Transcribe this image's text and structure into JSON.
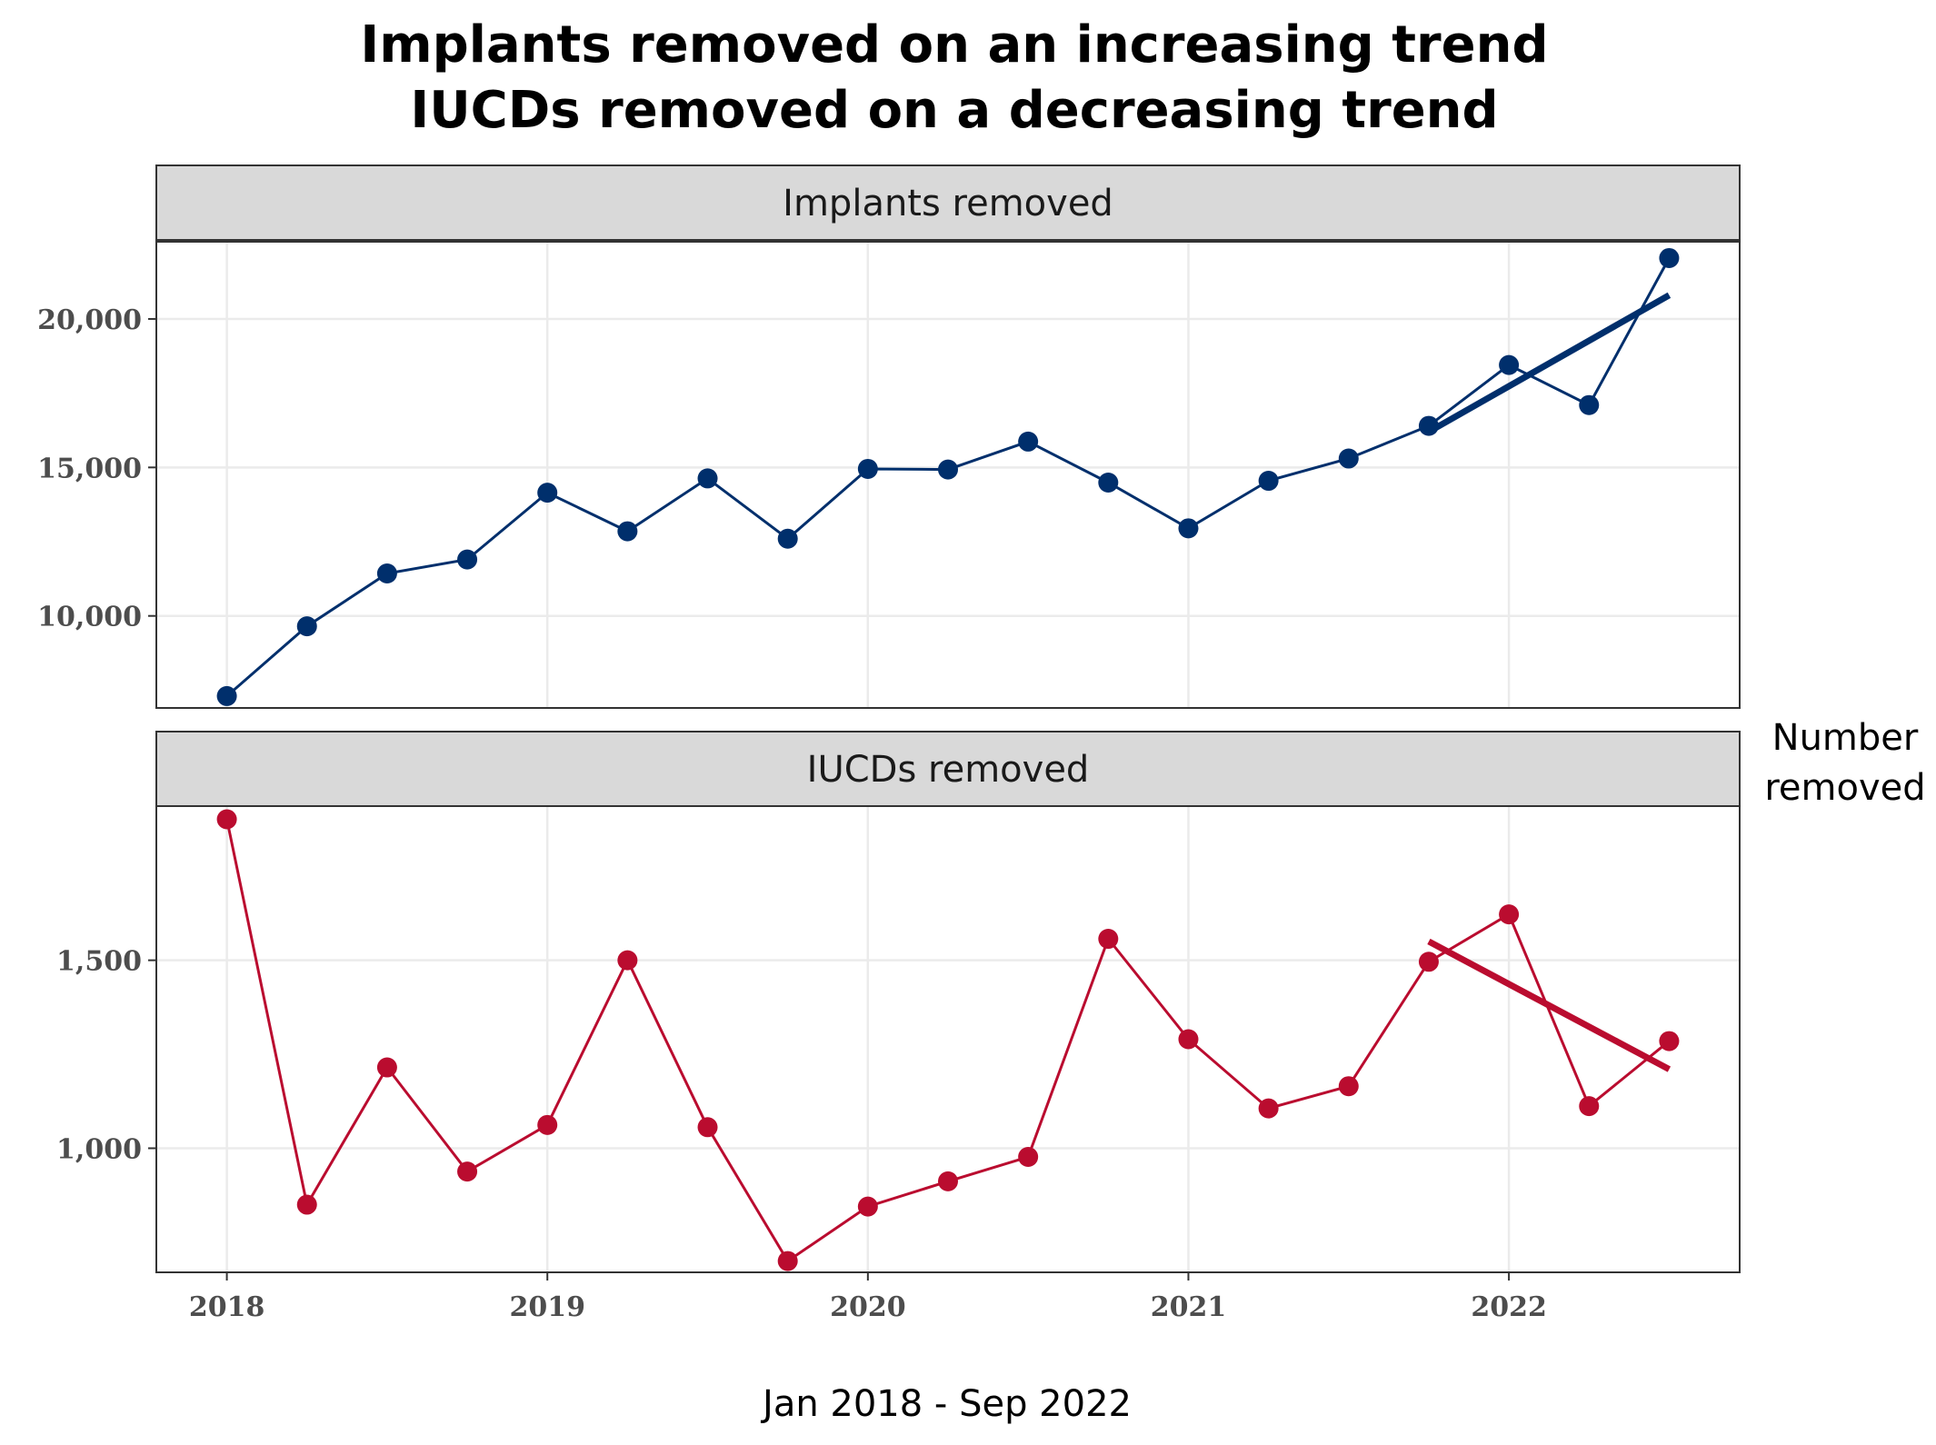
{
  "chart_data": {
    "type": "line",
    "title_lines": [
      "Implants removed on an increasing trend",
      "IUCDs removed on a decreasing trend"
    ],
    "xlabel": "Jan 2018 - Sep 2022",
    "ylabel_lines": [
      "Number",
      "removed"
    ],
    "x_domain": [
      2017.78,
      2022.72
    ],
    "x_ticks": [
      2018,
      2019,
      2020,
      2021,
      2022
    ],
    "x": [
      2018.0,
      2018.25,
      2018.5,
      2018.75,
      2019.0,
      2019.25,
      2019.5,
      2019.75,
      2020.0,
      2020.25,
      2020.5,
      2020.75,
      2021.0,
      2021.25,
      2021.5,
      2021.75,
      2022.0,
      2022.25,
      2022.5
    ],
    "grid": true,
    "panels": [
      {
        "name": "Implants removed",
        "color": "#002f6c",
        "ylim": [
          6900,
          22600
        ],
        "y_ticks": [
          10000,
          15000,
          20000
        ],
        "y_tick_labels": [
          "10,000",
          "15,000",
          "20,000"
        ],
        "values": [
          7300,
          9650,
          11430,
          11900,
          14150,
          12850,
          14630,
          12600,
          14950,
          14930,
          15870,
          14490,
          12950,
          14550,
          15300,
          16400,
          18450,
          17100,
          22050
        ],
        "trend": {
          "x": [
            2021.75,
            2022.5
          ],
          "y": [
            16200,
            20800
          ]
        }
      },
      {
        "name": "IUCDs removed",
        "color": "#ba0c2f",
        "ylim": [
          670,
          1910
        ],
        "y_ticks": [
          1000,
          1500
        ],
        "y_tick_labels": [
          "1,000",
          "1,500"
        ],
        "values": [
          1875,
          850,
          1215,
          938,
          1062,
          1500,
          1056,
          700,
          845,
          912,
          977,
          1557,
          1290,
          1106,
          1165,
          1496,
          1622,
          1112,
          1285
        ],
        "trend": {
          "x": [
            2021.75,
            2022.5
          ],
          "y": [
            1550,
            1210
          ]
        }
      }
    ]
  }
}
